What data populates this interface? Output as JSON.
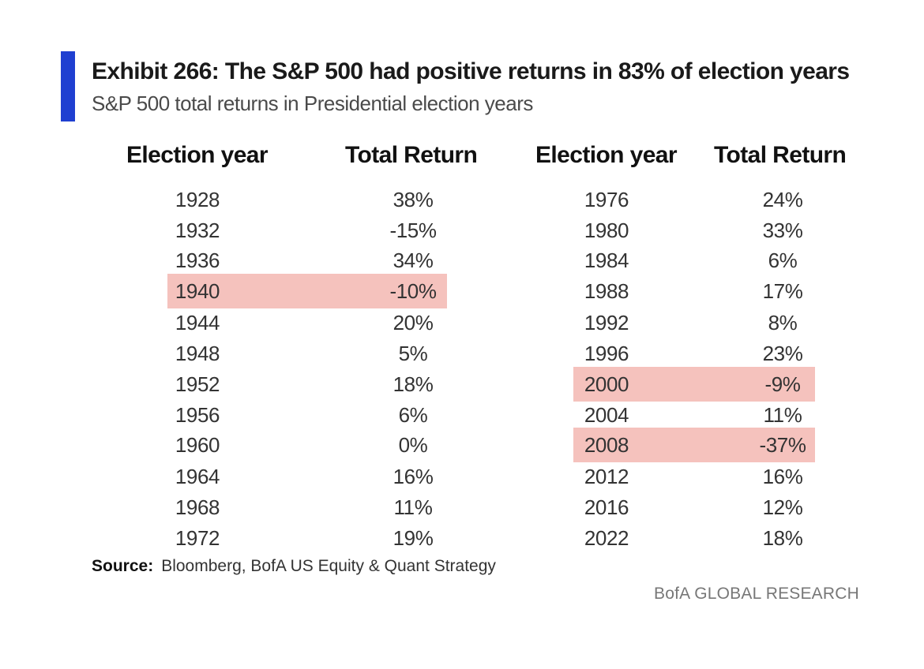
{
  "colors": {
    "accent": "#1f3fd1",
    "highlight": "#f5c2bd"
  },
  "chart_data": {
    "type": "table",
    "title": "Exhibit 266: The S&P 500 had positive returns in 83% of election years",
    "subtitle": "S&P 500 total returns in Presidential election years",
    "columns": [
      "Election year",
      "Total Return",
      "Election year",
      "Total Return"
    ],
    "left": [
      {
        "year": "1928",
        "ret": "38%",
        "highlight": false
      },
      {
        "year": "1932",
        "ret": "-15%",
        "highlight": false
      },
      {
        "year": "1936",
        "ret": "34%",
        "highlight": false
      },
      {
        "year": "1940",
        "ret": "-10%",
        "highlight": true
      },
      {
        "year": "1944",
        "ret": "20%",
        "highlight": false
      },
      {
        "year": "1948",
        "ret": "5%",
        "highlight": false
      },
      {
        "year": "1952",
        "ret": "18%",
        "highlight": false
      },
      {
        "year": "1956",
        "ret": "6%",
        "highlight": false
      },
      {
        "year": "1960",
        "ret": "0%",
        "highlight": false
      },
      {
        "year": "1964",
        "ret": "16%",
        "highlight": false
      },
      {
        "year": "1968",
        "ret": "11%",
        "highlight": false
      },
      {
        "year": "1972",
        "ret": "19%",
        "highlight": false
      }
    ],
    "right": [
      {
        "year": "1976",
        "ret": "24%",
        "highlight": false
      },
      {
        "year": "1980",
        "ret": "33%",
        "highlight": false
      },
      {
        "year": "1984",
        "ret": "6%",
        "highlight": false
      },
      {
        "year": "1988",
        "ret": "17%",
        "highlight": false
      },
      {
        "year": "1992",
        "ret": "8%",
        "highlight": false
      },
      {
        "year": "1996",
        "ret": "23%",
        "highlight": false
      },
      {
        "year": "2000",
        "ret": "-9%",
        "highlight": true
      },
      {
        "year": "2004",
        "ret": "11%",
        "highlight": false
      },
      {
        "year": "2008",
        "ret": "-37%",
        "highlight": true
      },
      {
        "year": "2012",
        "ret": "16%",
        "highlight": false
      },
      {
        "year": "2016",
        "ret": "12%",
        "highlight": false
      },
      {
        "year": "2022",
        "ret": "18%",
        "highlight": false
      }
    ]
  },
  "source": {
    "label": "Source:",
    "text": "Bloomberg, BofA US Equity & Quant Strategy"
  },
  "brand": "BofA GLOBAL RESEARCH"
}
